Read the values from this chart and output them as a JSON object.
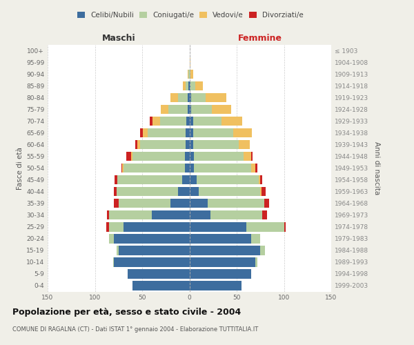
{
  "age_groups_bottom_to_top": [
    "0-4",
    "5-9",
    "10-14",
    "15-19",
    "20-24",
    "25-29",
    "30-34",
    "35-39",
    "40-44",
    "45-49",
    "50-54",
    "55-59",
    "60-64",
    "65-69",
    "70-74",
    "75-79",
    "80-84",
    "85-89",
    "90-94",
    "95-99",
    "100+"
  ],
  "birth_years_bottom_to_top": [
    "1999-2003",
    "1994-1998",
    "1989-1993",
    "1984-1988",
    "1979-1983",
    "1974-1978",
    "1969-1973",
    "1964-1968",
    "1959-1963",
    "1954-1958",
    "1949-1953",
    "1944-1948",
    "1939-1943",
    "1934-1938",
    "1929-1933",
    "1924-1928",
    "1919-1923",
    "1914-1918",
    "1909-1913",
    "1904-1908",
    "≤ 1903"
  ],
  "maschi": {
    "celibi": [
      60,
      65,
      80,
      75,
      80,
      70,
      40,
      20,
      12,
      8,
      5,
      5,
      4,
      4,
      3,
      2,
      2,
      1,
      0,
      0,
      0
    ],
    "coniugati": [
      0,
      0,
      1,
      2,
      5,
      15,
      45,
      55,
      65,
      68,
      65,
      55,
      48,
      40,
      28,
      20,
      10,
      3,
      1,
      0,
      0
    ],
    "vedovi": [
      0,
      0,
      0,
      0,
      0,
      0,
      0,
      0,
      0,
      0,
      1,
      2,
      3,
      5,
      8,
      8,
      8,
      3,
      1,
      0,
      0
    ],
    "divorziati": [
      0,
      0,
      0,
      0,
      0,
      3,
      2,
      5,
      3,
      3,
      1,
      5,
      2,
      3,
      3,
      0,
      0,
      0,
      0,
      0,
      0
    ]
  },
  "femmine": {
    "nubili": [
      55,
      65,
      70,
      75,
      65,
      60,
      22,
      19,
      10,
      8,
      5,
      5,
      4,
      4,
      4,
      2,
      2,
      1,
      0,
      0,
      0
    ],
    "coniugate": [
      0,
      0,
      2,
      5,
      10,
      40,
      55,
      60,
      65,
      65,
      60,
      52,
      48,
      42,
      30,
      22,
      15,
      5,
      1,
      0,
      0
    ],
    "vedove": [
      0,
      0,
      0,
      0,
      0,
      0,
      0,
      0,
      1,
      2,
      5,
      8,
      12,
      20,
      22,
      20,
      22,
      8,
      3,
      1,
      0
    ],
    "divorziate": [
      0,
      0,
      0,
      0,
      0,
      2,
      5,
      5,
      5,
      2,
      2,
      2,
      0,
      0,
      0,
      0,
      0,
      0,
      0,
      0,
      0
    ]
  },
  "colors": {
    "celibi": "#3d6d9e",
    "coniugati": "#b5cfa0",
    "vedovi": "#f0c060",
    "divorziati": "#cc2222"
  },
  "xlim": 150,
  "title": "Popolazione per età, sesso e stato civile - 2004",
  "subtitle": "COMUNE DI RAGALNA (CT) - Dati ISTAT 1° gennaio 2004 - Elaborazione TUTTITALIA.IT",
  "ylabel_left": "Fasce di età",
  "ylabel_right": "Anni di nascita",
  "xlabel_maschi": "Maschi",
  "xlabel_femmine": "Femmine",
  "bg_color": "#f0efe8",
  "plot_bg": "#ffffff",
  "legend_labels": [
    "Celibi/Nubili",
    "Coniugati/e",
    "Vedovi/e",
    "Divorziati/e"
  ]
}
